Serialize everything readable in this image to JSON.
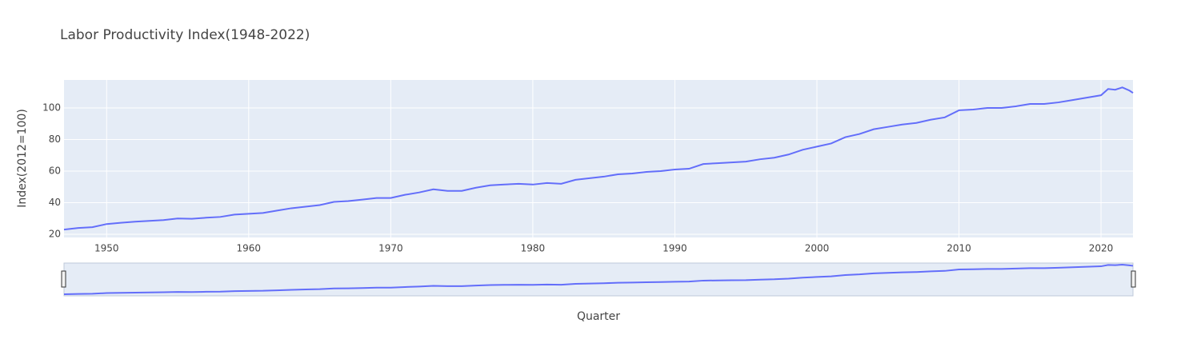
{
  "chart_data": {
    "type": "line",
    "title": "Labor Productivity Index(1948-2022)",
    "x_label": "Quarter",
    "y_label": "Index(2012=100)",
    "xlim": [
      1947,
      2022.25
    ],
    "xticks": [
      1950,
      1960,
      1970,
      1980,
      1990,
      2000,
      2010,
      2020
    ],
    "ylim": [
      18,
      117.7
    ],
    "yticks": [
      20,
      40,
      60,
      80,
      100
    ],
    "grid": true,
    "range_slider": true,
    "series": [
      {
        "name": "Index",
        "color": "#636efa",
        "x": [
          1947,
          1948,
          1949,
          1950,
          1951,
          1952,
          1953,
          1954,
          1955,
          1956,
          1957,
          1958,
          1959,
          1960,
          1961,
          1962,
          1963,
          1964,
          1965,
          1966,
          1967,
          1968,
          1969,
          1970,
          1971,
          1972,
          1973,
          1974,
          1975,
          1976,
          1977,
          1978,
          1979,
          1980,
          1981,
          1982,
          1983,
          1984,
          1985,
          1986,
          1987,
          1988,
          1989,
          1990,
          1991,
          1992,
          1993,
          1994,
          1995,
          1996,
          1997,
          1998,
          1999,
          2000,
          2001,
          2002,
          2003,
          2004,
          2005,
          2006,
          2007,
          2008,
          2009,
          2010,
          2011,
          2012,
          2013,
          2014,
          2015,
          2016,
          2017,
          2018,
          2019,
          2020,
          2020.5,
          2021,
          2021.5,
          2022,
          2022.25
        ],
        "values": [
          23,
          24,
          24.5,
          26.5,
          27.3,
          28,
          28.5,
          29,
          30,
          29.8,
          30.5,
          31,
          32.5,
          33,
          33.5,
          35,
          36.5,
          37.5,
          38.5,
          40.5,
          41,
          42,
          43,
          43,
          45,
          46.5,
          48.5,
          47.5,
          47.5,
          49.5,
          51,
          51.5,
          52,
          51.5,
          52.5,
          52,
          54.5,
          55.5,
          56.5,
          58,
          58.5,
          59.5,
          60,
          61,
          61.5,
          64.5,
          65,
          65.5,
          66,
          67.5,
          68.5,
          70.5,
          73.5,
          75.5,
          77.5,
          81.5,
          83.5,
          86.5,
          88,
          89.5,
          90.5,
          92.5,
          94,
          98.5,
          99,
          100,
          100,
          101,
          102.5,
          102.5,
          103.5,
          105,
          106.5,
          108,
          112,
          111.5,
          113,
          111,
          109.5
        ]
      }
    ]
  }
}
